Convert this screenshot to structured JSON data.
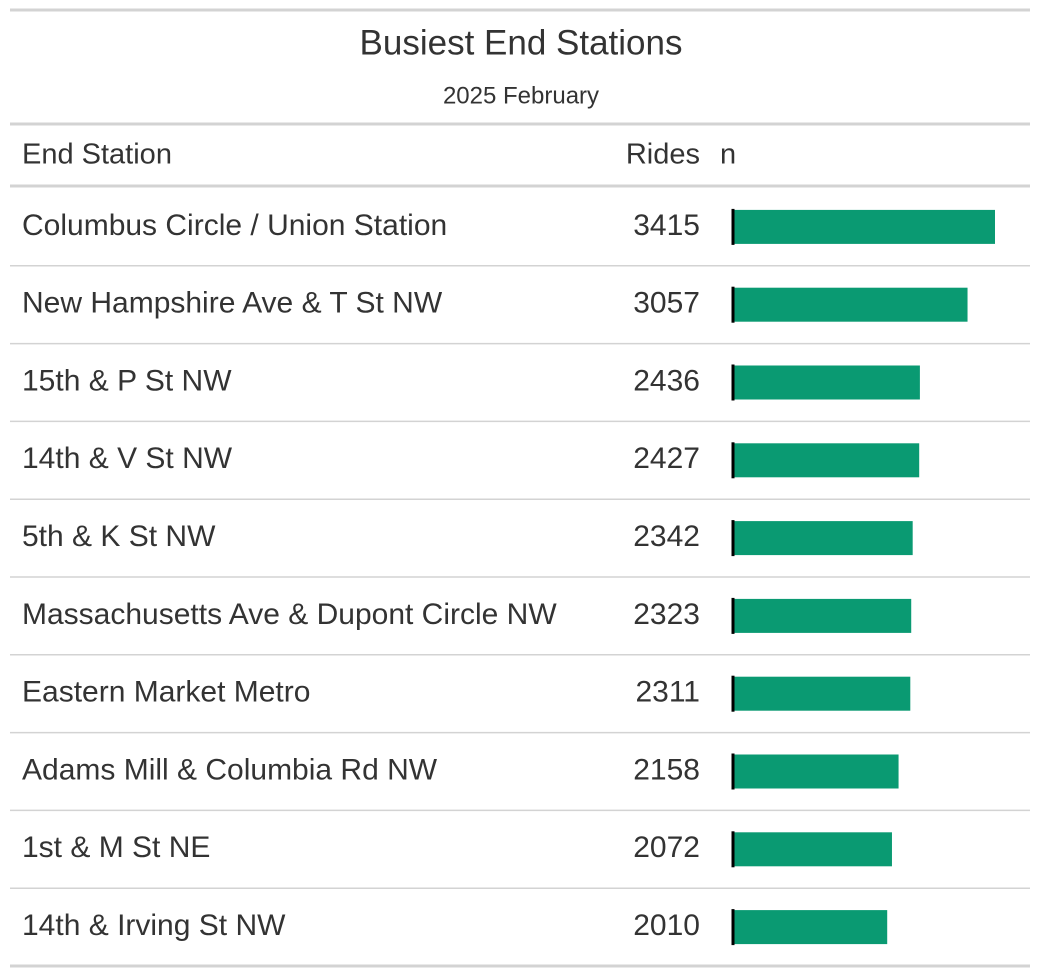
{
  "header": {
    "title": "Busiest End Stations",
    "subtitle": "2025 February"
  },
  "table": {
    "columns": [
      "End Station",
      "Rides",
      "n"
    ],
    "rows": [
      [
        "Columbus Circle / Union Station",
        3415
      ],
      [
        "New Hampshire Ave & T St NW",
        3057
      ],
      [
        "15th & P St NW",
        2436
      ],
      [
        "14th & V St NW",
        2427
      ],
      [
        "5th & K St NW",
        2342
      ],
      [
        "Massachusetts Ave & Dupont Circle NW",
        2323
      ],
      [
        "Eastern Market Metro",
        2311
      ],
      [
        "Adams Mill & Columbia Rd NW",
        2158
      ],
      [
        "1st & M St NE",
        2072
      ],
      [
        "14th & Irving St NW",
        2010
      ]
    ]
  }
}
